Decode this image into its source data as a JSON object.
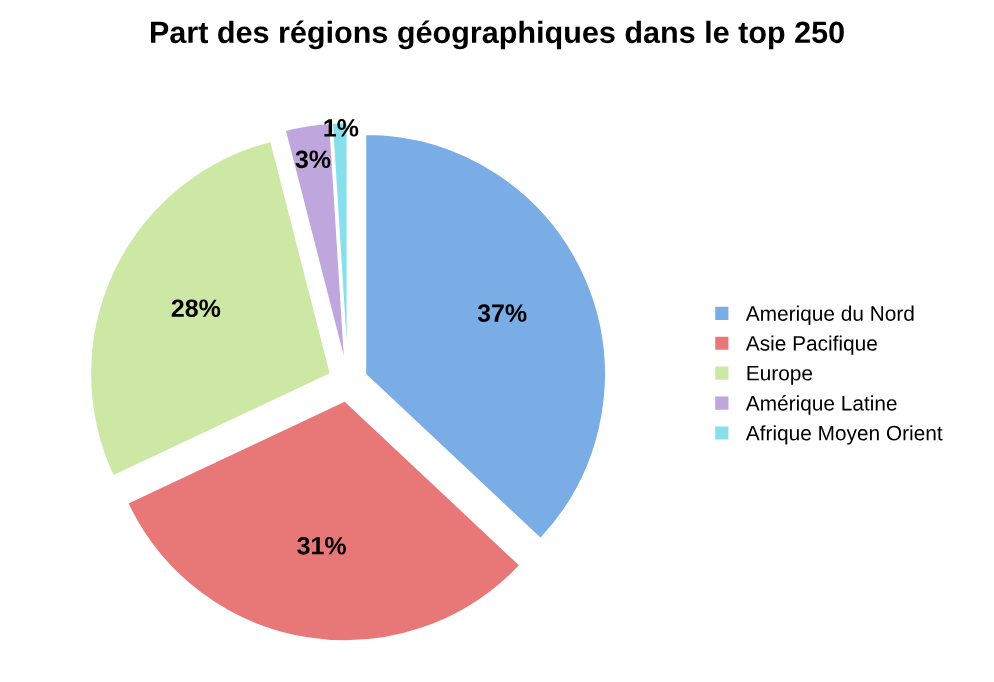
{
  "chart_data": {
    "type": "pie",
    "title": "Part des régions géographiques dans le top 250",
    "categories": [
      "Amerique du Nord",
      "Asie Pacifique",
      "Europe",
      "Amérique Latine",
      "Afrique Moyen Orient"
    ],
    "values": [
      37,
      31,
      28,
      3,
      1
    ],
    "colors": [
      "#7aace6",
      "#e87878",
      "#cde8a4",
      "#bfa6dc",
      "#86dfea"
    ],
    "value_labels": [
      "37%",
      "31%",
      "28%",
      "3%",
      "1%"
    ],
    "legend": "right"
  }
}
